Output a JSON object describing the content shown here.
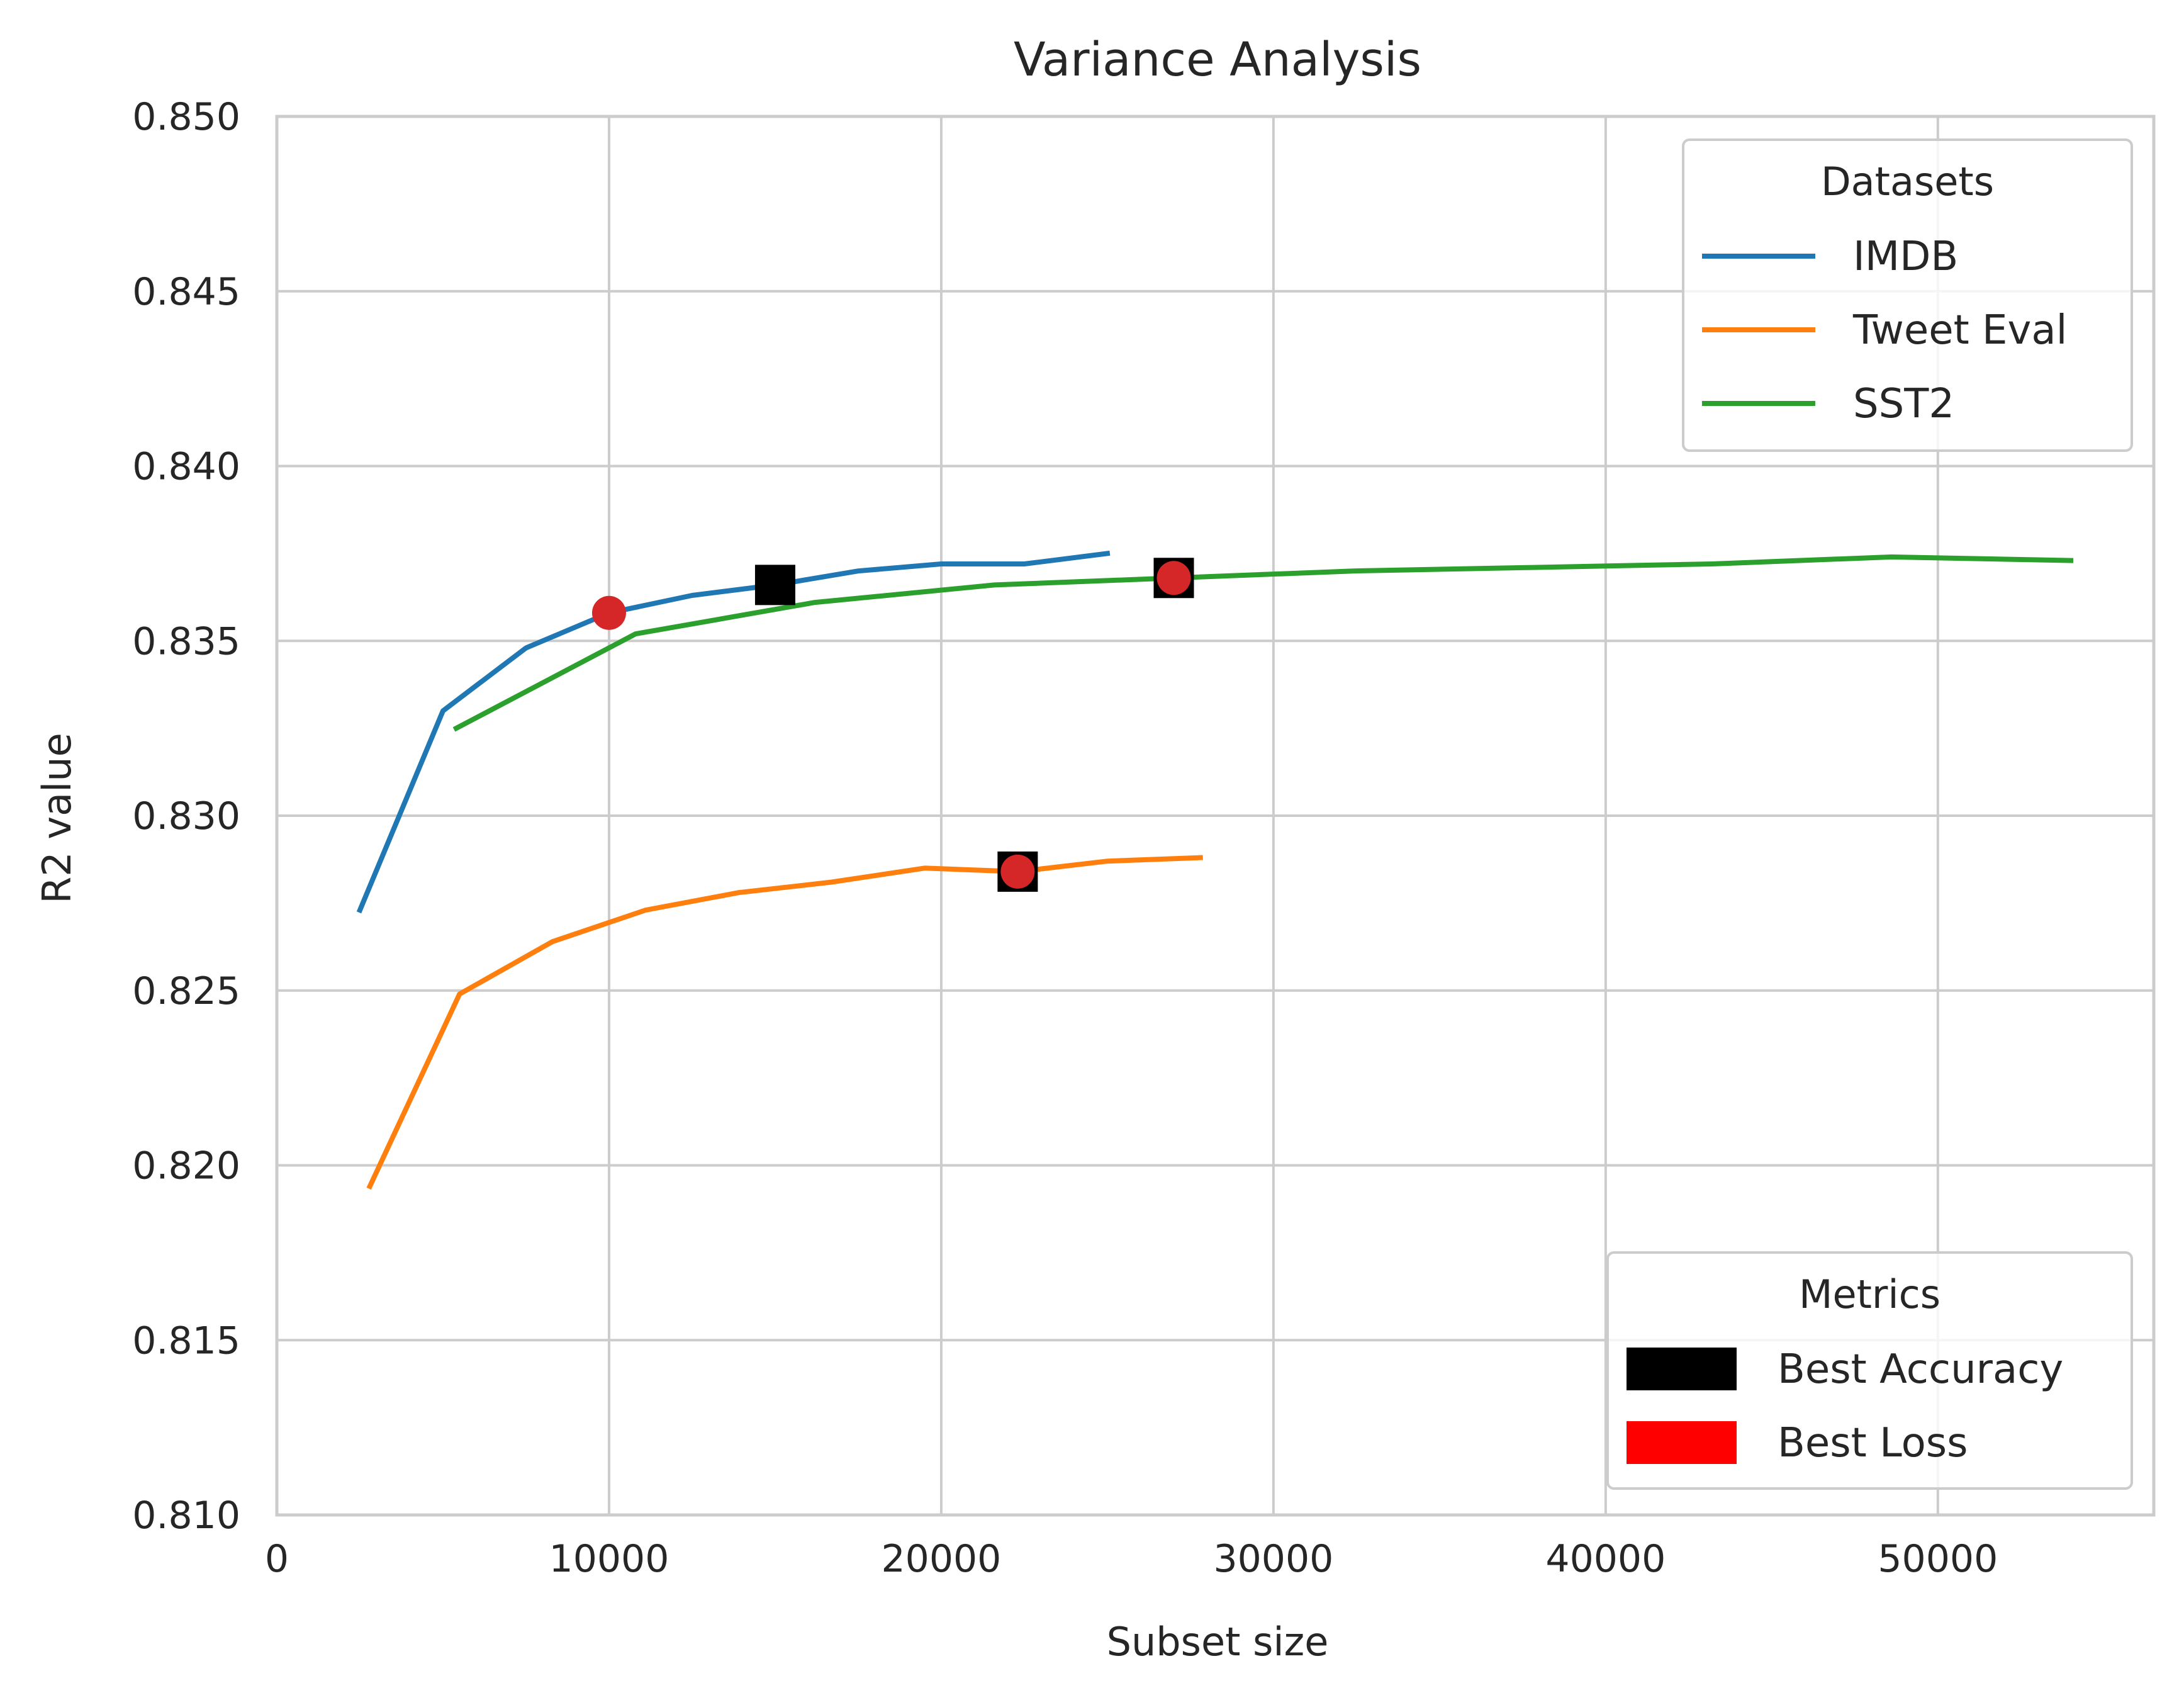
{
  "chart_data": {
    "type": "line",
    "title": "Variance Analysis",
    "xlabel": "Subset size",
    "ylabel": "R2 value",
    "xlim": [
      0,
      56500
    ],
    "ylim": [
      0.81,
      0.85
    ],
    "xticks": [
      0,
      10000,
      20000,
      30000,
      40000,
      50000
    ],
    "xtick_labels": [
      "0",
      "10000",
      "20000",
      "30000",
      "40000",
      "50000"
    ],
    "yticks": [
      0.81,
      0.815,
      0.82,
      0.825,
      0.83,
      0.835,
      0.84,
      0.845,
      0.85
    ],
    "ytick_labels": [
      "0.810",
      "0.815",
      "0.820",
      "0.825",
      "0.830",
      "0.835",
      "0.840",
      "0.845",
      "0.850"
    ],
    "grid": true,
    "series": [
      {
        "name": "IMDB",
        "color": "#1f77b4",
        "points": [
          [
            2500,
            0.8273
          ],
          [
            5000,
            0.833
          ],
          [
            7500,
            0.8348
          ],
          [
            10000,
            0.8358
          ],
          [
            12500,
            0.8363
          ],
          [
            15000,
            0.8366
          ],
          [
            17500,
            0.837
          ],
          [
            20000,
            0.8372
          ],
          [
            22500,
            0.8372
          ],
          [
            25000,
            0.8375
          ]
        ]
      },
      {
        "name": "Tweet Eval",
        "color": "#ff7f0e",
        "points": [
          [
            2800,
            0.8194
          ],
          [
            5500,
            0.8249
          ],
          [
            8300,
            0.8264
          ],
          [
            11100,
            0.8273
          ],
          [
            13900,
            0.8278
          ],
          [
            16700,
            0.8281
          ],
          [
            19500,
            0.8285
          ],
          [
            22300,
            0.8284
          ],
          [
            25000,
            0.8287
          ],
          [
            27800,
            0.8288
          ]
        ]
      },
      {
        "name": "SST2",
        "color": "#2ca02c",
        "points": [
          [
            5400,
            0.8325
          ],
          [
            10800,
            0.8352
          ],
          [
            16200,
            0.8361
          ],
          [
            21600,
            0.8366
          ],
          [
            27000,
            0.8368
          ],
          [
            32400,
            0.837
          ],
          [
            37800,
            0.8371
          ],
          [
            43200,
            0.8372
          ],
          [
            48600,
            0.8374
          ],
          [
            54000,
            0.8373
          ]
        ]
      }
    ],
    "markers": [
      {
        "metric": "Best Accuracy",
        "series": "IMDB",
        "x": 15000,
        "y": 0.8366
      },
      {
        "metric": "Best Loss",
        "series": "IMDB",
        "x": 10000,
        "y": 0.8358
      },
      {
        "metric": "Best Accuracy",
        "series": "Tweet Eval",
        "x": 22300,
        "y": 0.8284
      },
      {
        "metric": "Best Loss",
        "series": "Tweet Eval",
        "x": 22300,
        "y": 0.8284
      },
      {
        "metric": "Best Accuracy",
        "series": "SST2",
        "x": 27000,
        "y": 0.8368
      },
      {
        "metric": "Best Loss",
        "series": "SST2",
        "x": 27000,
        "y": 0.8368
      }
    ],
    "legends": [
      {
        "title": "Datasets",
        "placement": "top-right",
        "entries": [
          {
            "label": "IMDB",
            "color": "#1f77b4",
            "kind": "line"
          },
          {
            "label": "Tweet Eval",
            "color": "#ff7f0e",
            "kind": "line"
          },
          {
            "label": "SST2",
            "color": "#2ca02c",
            "kind": "line"
          }
        ]
      },
      {
        "title": "Metrics",
        "placement": "bottom-right",
        "entries": [
          {
            "label": "Best Accuracy",
            "color": "#000000",
            "kind": "patch"
          },
          {
            "label": "Best Loss",
            "color": "#ff0000",
            "kind": "patch"
          }
        ]
      }
    ],
    "colors": {
      "accuracy_marker": "#000000",
      "loss_marker": "#d62728",
      "grid": "#cccccc",
      "spine": "#cccccc",
      "text": "#262626"
    }
  }
}
